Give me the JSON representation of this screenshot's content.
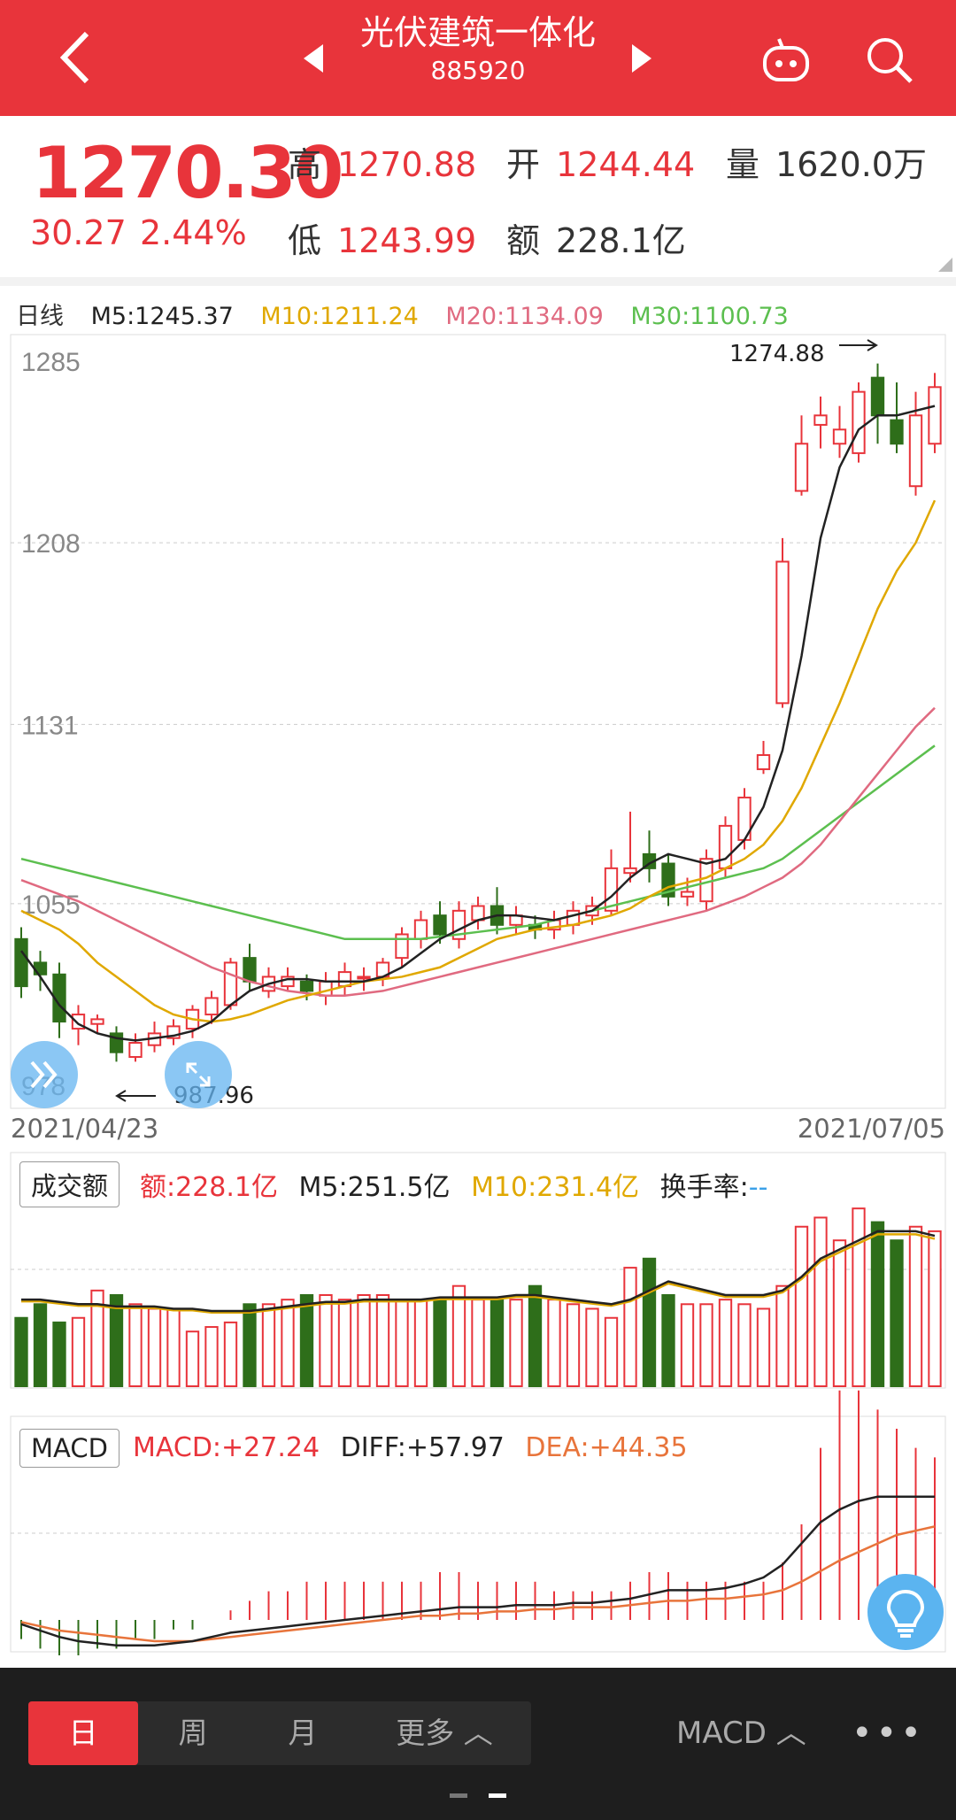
{
  "header": {
    "title": "光伏建筑一体化",
    "code": "885920",
    "bg_color": "#e8343b"
  },
  "quote": {
    "price": "1270.30",
    "change": "30.27",
    "change_pct": "2.44%",
    "high_label": "高",
    "high": "1270.88",
    "open_label": "开",
    "open": "1244.44",
    "volume_label": "量",
    "volume": "1620.0万",
    "low_label": "低",
    "low": "1243.99",
    "amount_label": "额",
    "amount": "228.1亿"
  },
  "ma": {
    "period": "日线",
    "m5": "M5:1245.37",
    "m10": "M10:1211.24",
    "m20": "M20:1134.09",
    "m30": "M30:1100.73",
    "colors": {
      "m5": "#222222",
      "m10": "#e0a800",
      "m20": "#e06a80",
      "m30": "#5cbf4f"
    }
  },
  "chart_data": {
    "type": "candlestick",
    "y_ticks": [
      "1285",
      "1208",
      "1131",
      "1055",
      "978"
    ],
    "ylim": [
      978,
      1285
    ],
    "start_date": "2021/04/23",
    "end_date": "2021/07/05",
    "high_annotation": "1274.88",
    "low_annotation": "987.96",
    "candles": [
      [
        1040,
        1020,
        1045,
        1015
      ],
      [
        1030,
        1025,
        1035,
        1018
      ],
      [
        1025,
        1005,
        1030,
        998
      ],
      [
        1002,
        1008,
        1012,
        995
      ],
      [
        1004,
        1006,
        1008,
        1000
      ],
      [
        1000,
        992,
        1003,
        988
      ],
      [
        990,
        996,
        1000,
        988
      ],
      [
        995,
        1000,
        1005,
        992
      ],
      [
        998,
        1003,
        1006,
        995
      ],
      [
        1002,
        1010,
        1012,
        998
      ],
      [
        1008,
        1015,
        1018,
        1004
      ],
      [
        1012,
        1030,
        1032,
        1010
      ],
      [
        1032,
        1022,
        1038,
        1018
      ],
      [
        1018,
        1024,
        1028,
        1015
      ],
      [
        1020,
        1024,
        1028,
        1018
      ],
      [
        1022,
        1018,
        1025,
        1014
      ],
      [
        1016,
        1022,
        1026,
        1012
      ],
      [
        1020,
        1026,
        1030,
        1016
      ],
      [
        1024,
        1024,
        1028,
        1018
      ],
      [
        1024,
        1030,
        1032,
        1020
      ],
      [
        1032,
        1042,
        1045,
        1028
      ],
      [
        1040,
        1048,
        1052,
        1036
      ],
      [
        1050,
        1042,
        1056,
        1038
      ],
      [
        1040,
        1052,
        1056,
        1036
      ],
      [
        1048,
        1054,
        1058,
        1044
      ],
      [
        1054,
        1046,
        1062,
        1042
      ],
      [
        1046,
        1050,
        1054,
        1042
      ],
      [
        1046,
        1044,
        1050,
        1040
      ],
      [
        1044,
        1048,
        1052,
        1040
      ],
      [
        1046,
        1052,
        1056,
        1042
      ],
      [
        1050,
        1054,
        1058,
        1046
      ],
      [
        1052,
        1070,
        1078,
        1050
      ],
      [
        1068,
        1070,
        1094,
        1064
      ],
      [
        1076,
        1070,
        1086,
        1064
      ],
      [
        1072,
        1058,
        1076,
        1054
      ],
      [
        1058,
        1060,
        1066,
        1054
      ],
      [
        1056,
        1074,
        1078,
        1052
      ],
      [
        1070,
        1088,
        1092,
        1066
      ],
      [
        1082,
        1100,
        1104,
        1078
      ],
      [
        1112,
        1118,
        1124,
        1110
      ],
      [
        1140,
        1200,
        1210,
        1138
      ],
      [
        1230,
        1250,
        1262,
        1228
      ],
      [
        1258,
        1262,
        1270,
        1248
      ],
      [
        1250,
        1256,
        1266,
        1244
      ],
      [
        1246,
        1272,
        1276,
        1242
      ],
      [
        1278,
        1262,
        1284,
        1250
      ],
      [
        1260,
        1250,
        1276,
        1246
      ],
      [
        1232,
        1262,
        1272,
        1228
      ],
      [
        1250,
        1274,
        1280,
        1246
      ]
    ],
    "ma5": [
      1035,
      1024,
      1012,
      1004,
      1000,
      998,
      997,
      998,
      999,
      1001,
      1005,
      1012,
      1018,
      1021,
      1023,
      1023,
      1022,
      1022,
      1022,
      1024,
      1028,
      1034,
      1040,
      1044,
      1048,
      1050,
      1050,
      1049,
      1048,
      1050,
      1052,
      1058,
      1066,
      1072,
      1076,
      1074,
      1072,
      1074,
      1082,
      1096,
      1120,
      1160,
      1210,
      1240,
      1256,
      1262,
      1262,
      1264,
      1266
    ],
    "ma10": [
      1052,
      1048,
      1044,
      1038,
      1030,
      1024,
      1018,
      1012,
      1008,
      1006,
      1005,
      1006,
      1008,
      1011,
      1014,
      1016,
      1018,
      1020,
      1022,
      1023,
      1024,
      1026,
      1028,
      1032,
      1036,
      1040,
      1042,
      1044,
      1045,
      1046,
      1048,
      1050,
      1053,
      1058,
      1062,
      1064,
      1066,
      1070,
      1074,
      1080,
      1090,
      1104,
      1122,
      1140,
      1160,
      1180,
      1196,
      1208,
      1226
    ],
    "ma20": [
      1065,
      1062,
      1059,
      1056,
      1052,
      1048,
      1044,
      1040,
      1036,
      1032,
      1028,
      1025,
      1022,
      1020,
      1018,
      1017,
      1016,
      1016,
      1017,
      1018,
      1020,
      1022,
      1024,
      1026,
      1028,
      1030,
      1032,
      1034,
      1036,
      1038,
      1040,
      1042,
      1044,
      1046,
      1048,
      1050,
      1052,
      1055,
      1058,
      1062,
      1066,
      1072,
      1080,
      1090,
      1100,
      1110,
      1120,
      1130,
      1138
    ],
    "ma30": [
      1074,
      1072,
      1070,
      1068,
      1066,
      1064,
      1062,
      1060,
      1058,
      1056,
      1054,
      1052,
      1050,
      1048,
      1046,
      1044,
      1042,
      1040,
      1040,
      1040,
      1040,
      1040,
      1041,
      1042,
      1043,
      1044,
      1045,
      1046,
      1048,
      1050,
      1052,
      1054,
      1056,
      1058,
      1060,
      1062,
      1064,
      1066,
      1068,
      1070,
      1074,
      1080,
      1086,
      1092,
      1098,
      1104,
      1110,
      1116,
      1122
    ]
  },
  "volume": {
    "label": "成交额",
    "amount": "额:228.1亿",
    "m5": "M5:251.5亿",
    "m10": "M10:231.4亿",
    "turnover_label": "换手率:",
    "turnover_value": "--",
    "values": [
      30,
      36,
      28,
      30,
      42,
      40,
      36,
      34,
      34,
      24,
      26,
      28,
      36,
      36,
      38,
      40,
      40,
      38,
      40,
      40,
      38,
      38,
      38,
      44,
      38,
      38,
      38,
      44,
      38,
      36,
      34,
      30,
      52,
      56,
      40,
      36,
      36,
      38,
      36,
      34,
      44,
      70,
      74,
      64,
      78,
      72,
      64,
      70,
      68
    ],
    "ma": [
      38,
      38,
      37,
      36,
      36,
      35,
      35,
      35,
      34,
      34,
      33,
      33,
      33,
      34,
      35,
      36,
      37,
      37,
      38,
      38,
      38,
      38,
      39,
      39,
      39,
      39,
      40,
      40,
      39,
      38,
      37,
      36,
      38,
      42,
      46,
      44,
      42,
      40,
      40,
      40,
      42,
      48,
      56,
      60,
      64,
      68,
      68,
      68,
      66
    ]
  },
  "macd": {
    "label": "MACD",
    "macd": "MACD:+27.24",
    "diff": "DIFF:+57.97",
    "dea": "DEA:+44.35",
    "bars": [
      -2,
      -3,
      -4,
      -4,
      -3,
      -3,
      -2,
      -2,
      -1,
      -1,
      0,
      1,
      2,
      3,
      3,
      4,
      4,
      4,
      4,
      4,
      4,
      4,
      5,
      5,
      4,
      4,
      4,
      4,
      3,
      3,
      3,
      3,
      4,
      5,
      5,
      4,
      4,
      4,
      4,
      4,
      6,
      10,
      18,
      24,
      24,
      22,
      20,
      18,
      17
    ],
    "diff_line": [
      -2,
      -5,
      -8,
      -10,
      -11,
      -12,
      -12,
      -12,
      -11,
      -10,
      -8,
      -6,
      -5,
      -4,
      -3,
      -2,
      -1,
      0,
      1,
      2,
      3,
      4,
      5,
      6,
      6,
      6,
      7,
      7,
      7,
      8,
      8,
      9,
      10,
      12,
      14,
      14,
      14,
      15,
      17,
      20,
      26,
      36,
      46,
      52,
      56,
      58,
      58,
      58,
      58
    ],
    "dea_line": [
      -1,
      -3,
      -5,
      -6,
      -7,
      -8,
      -9,
      -10,
      -10,
      -10,
      -9,
      -8,
      -7,
      -6,
      -5,
      -4,
      -3,
      -2,
      -1,
      0,
      1,
      2,
      2,
      3,
      3,
      4,
      4,
      5,
      5,
      6,
      6,
      6,
      7,
      8,
      9,
      9,
      10,
      10,
      11,
      12,
      14,
      18,
      23,
      28,
      32,
      36,
      40,
      42,
      44
    ]
  },
  "bottom": {
    "tabs": [
      "日",
      "周",
      "月",
      "更多 ︿"
    ],
    "indicator": "MACD ︿",
    "more": "•••"
  }
}
